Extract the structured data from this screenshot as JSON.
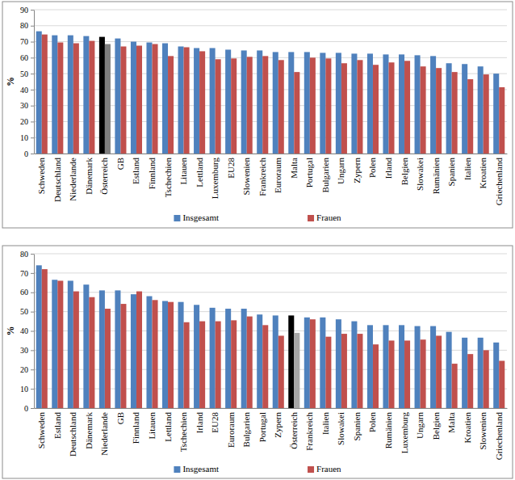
{
  "chart_data": [
    {
      "type": "bar",
      "categories": [
        "Schweden",
        "Deutschland",
        "Niederlande",
        "Dänemark",
        "Österreich",
        "GB",
        "Estland",
        "Finnland",
        "Tschechien",
        "Litauen",
        "Lettland",
        "Luxemburg",
        "EU28",
        "Slowenien",
        "Frankreich",
        "Euroraum",
        "Malta",
        "Portugal",
        "Bulgarien",
        "Ungarn",
        "Zypern",
        "Polen",
        "Irland",
        "Belgien",
        "Slowakei",
        "Rumänien",
        "Spanien",
        "Italien",
        "Kroatien",
        "Griechenland"
      ],
      "series": [
        {
          "name": "Insgesamt",
          "color": "#4f81bd",
          "colors": [
            "#4f81bd",
            "#4f81bd",
            "#4f81bd",
            "#4f81bd",
            "#000000",
            "#4f81bd",
            "#4f81bd",
            "#4f81bd",
            "#4f81bd",
            "#4f81bd",
            "#4f81bd",
            "#4f81bd",
            "#4f81bd",
            "#4f81bd",
            "#4f81bd",
            "#4f81bd",
            "#4f81bd",
            "#4f81bd",
            "#4f81bd",
            "#4f81bd",
            "#4f81bd",
            "#4f81bd",
            "#4f81bd",
            "#4f81bd",
            "#4f81bd",
            "#4f81bd",
            "#4f81bd",
            "#4f81bd",
            "#4f81bd",
            "#4f81bd"
          ],
          "values": [
            76.5,
            74,
            74,
            73.5,
            73,
            72,
            70,
            69.5,
            69,
            67,
            66,
            66,
            65,
            64.5,
            64.5,
            63.5,
            63.5,
            63.5,
            63,
            63,
            62.5,
            62.5,
            62,
            62,
            61.5,
            61,
            56.5,
            56,
            54.5,
            50
          ]
        },
        {
          "name": "Frauen",
          "color": "#c0504d",
          "colors": [
            "#c0504d",
            "#c0504d",
            "#c0504d",
            "#c0504d",
            "#7f7f7f",
            "#c0504d",
            "#c0504d",
            "#c0504d",
            "#c0504d",
            "#c0504d",
            "#c0504d",
            "#c0504d",
            "#c0504d",
            "#c0504d",
            "#c0504d",
            "#c0504d",
            "#c0504d",
            "#c0504d",
            "#c0504d",
            "#c0504d",
            "#c0504d",
            "#c0504d",
            "#c0504d",
            "#c0504d",
            "#c0504d",
            "#c0504d",
            "#c0504d",
            "#c0504d",
            "#c0504d",
            "#c0504d"
          ],
          "values": [
            74.5,
            69.5,
            69,
            70.5,
            68.5,
            67,
            67.5,
            68.5,
            61,
            66.5,
            64,
            59,
            59.5,
            60.5,
            61,
            58.5,
            51,
            60,
            59.5,
            56.5,
            58.5,
            55.5,
            57,
            58,
            54.5,
            53.5,
            51,
            46.5,
            49.5,
            41.5
          ]
        }
      ],
      "ylabel": "%",
      "ylim": [
        0,
        90
      ],
      "yticks": [
        0,
        10,
        20,
        30,
        40,
        50,
        60,
        70,
        80,
        90
      ],
      "grid": true,
      "legend": "bottom"
    },
    {
      "type": "bar",
      "categories": [
        "Schweden",
        "Estland",
        "Deutschland",
        "Dänemark",
        "Niederlande",
        "GB",
        "Finnland",
        "Litauen",
        "Lettland",
        "Tschechien",
        "Irland",
        "EU28",
        "Euroraum",
        "Bulgarien",
        "Portugal",
        "Zypern",
        "Österreich",
        "Frankreich",
        "Italien",
        "Slowakei",
        "Spanien",
        "Polen",
        "Rumänien",
        "Luxemburg",
        "Ungarn",
        "Belgien",
        "Malta",
        "Kroatien",
        "Slowenien",
        "Griechenland"
      ],
      "series": [
        {
          "name": "Insgesamt",
          "color": "#4f81bd",
          "colors": [
            "#4f81bd",
            "#4f81bd",
            "#4f81bd",
            "#4f81bd",
            "#4f81bd",
            "#4f81bd",
            "#4f81bd",
            "#4f81bd",
            "#4f81bd",
            "#4f81bd",
            "#4f81bd",
            "#4f81bd",
            "#4f81bd",
            "#4f81bd",
            "#4f81bd",
            "#4f81bd",
            "#000000",
            "#4f81bd",
            "#4f81bd",
            "#4f81bd",
            "#4f81bd",
            "#4f81bd",
            "#4f81bd",
            "#4f81bd",
            "#4f81bd",
            "#4f81bd",
            "#4f81bd",
            "#4f81bd",
            "#4f81bd",
            "#4f81bd"
          ],
          "values": [
            74,
            66.5,
            66,
            64,
            61,
            61,
            59,
            58,
            55.5,
            55,
            53.5,
            52,
            51.5,
            51.5,
            48.5,
            48,
            48,
            47,
            47,
            46,
            45,
            43,
            43,
            43,
            42.5,
            42.5,
            39.5,
            36.5,
            36.5,
            34
          ]
        },
        {
          "name": "Frauen",
          "color": "#c0504d",
          "colors": [
            "#c0504d",
            "#c0504d",
            "#c0504d",
            "#c0504d",
            "#c0504d",
            "#c0504d",
            "#c0504d",
            "#c0504d",
            "#c0504d",
            "#c0504d",
            "#c0504d",
            "#c0504d",
            "#c0504d",
            "#c0504d",
            "#c0504d",
            "#c0504d",
            "#a6a6a6",
            "#c0504d",
            "#c0504d",
            "#c0504d",
            "#c0504d",
            "#c0504d",
            "#c0504d",
            "#c0504d",
            "#c0504d",
            "#c0504d",
            "#c0504d",
            "#c0504d",
            "#c0504d",
            "#c0504d"
          ],
          "values": [
            72,
            66,
            60.5,
            57.5,
            51.5,
            54,
            60.5,
            56,
            55,
            44.5,
            45,
            45,
            45.5,
            47.5,
            43,
            37.5,
            39,
            46,
            37,
            38.5,
            38.5,
            33,
            35,
            35,
            35.5,
            37.5,
            23,
            28,
            30,
            24.5
          ]
        }
      ],
      "ylabel": "%",
      "ylim": [
        0,
        80
      ],
      "yticks": [
        0,
        10,
        20,
        30,
        40,
        50,
        60,
        70,
        80
      ],
      "grid": true,
      "legend": "bottom"
    }
  ]
}
